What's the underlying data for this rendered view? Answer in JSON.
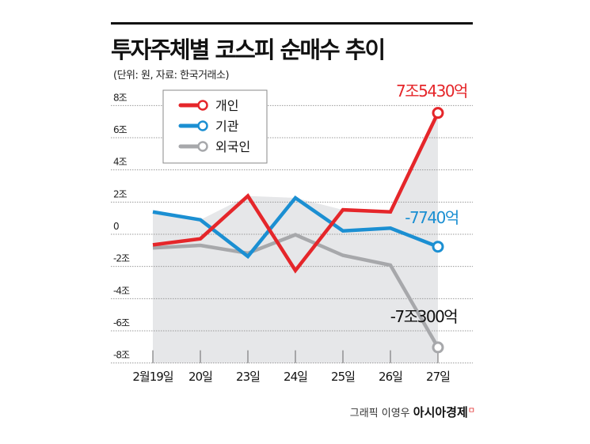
{
  "title": "투자주체별 코스피 순매수 추이",
  "subtitle": "(단위: 원, 자료: 한국거래소)",
  "footer": {
    "credit": "그래픽 이영우",
    "brand": "아시아경제"
  },
  "chart_data": {
    "type": "line",
    "categories": [
      "2월19일",
      "20일",
      "23일",
      "24일",
      "25일",
      "26일",
      "27일"
    ],
    "y_ticks": [
      {
        "value": 8,
        "label": "8조"
      },
      {
        "value": 6,
        "label": "6조"
      },
      {
        "value": 4,
        "label": "4조"
      },
      {
        "value": 2,
        "label": "2조"
      },
      {
        "value": 0,
        "label": "0"
      },
      {
        "value": -2,
        "label": "-2조"
      },
      {
        "value": -4,
        "label": "-4조"
      },
      {
        "value": -6,
        "label": "-6조"
      },
      {
        "value": -8,
        "label": "-8조"
      }
    ],
    "ylim": [
      -8,
      8
    ],
    "unit": "조원",
    "grid": true,
    "legend_position": "top-left",
    "series": [
      {
        "name": "개인",
        "color": "#e5262a",
        "values": [
          -0.66,
          -0.28,
          2.38,
          -2.25,
          1.52,
          1.39,
          7.543
        ],
        "end_label": "7조5430억"
      },
      {
        "name": "기관",
        "color": "#1b8fd2",
        "values": [
          1.39,
          0.9,
          -1.38,
          2.26,
          0.21,
          0.38,
          -0.774
        ],
        "end_label": "-7740억"
      },
      {
        "name": "외국인",
        "color": "#a7a8ab",
        "values": [
          -0.85,
          -0.69,
          -1.18,
          -0.03,
          -1.31,
          -1.92,
          -7.03
        ],
        "end_label": "-7조300억"
      }
    ],
    "end_label_colors": [
      "#e5262a",
      "#1b8fd2",
      "#111111"
    ]
  }
}
